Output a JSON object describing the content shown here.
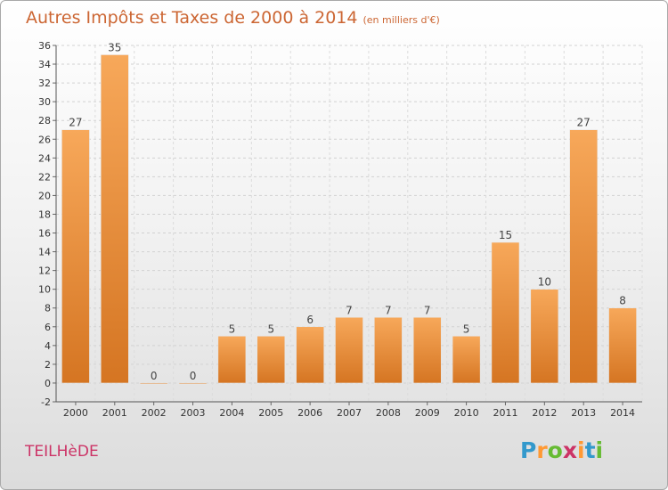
{
  "title": "Autres Impôts et Taxes de 2000 à 2014",
  "subtitle": "(en milliers d'€)",
  "commune": "TEILHèDE",
  "logo": {
    "letters": [
      "P",
      "r",
      "o",
      "x",
      "i",
      "t",
      "i"
    ],
    "colors": [
      "#3399cc",
      "#ff9933",
      "#66bb33",
      "#cc3366",
      "#ff9933",
      "#3399cc",
      "#66bb33"
    ]
  },
  "colors": {
    "title": "#cc6633",
    "commune": "#cc3366",
    "bar_light": "#f7a85a",
    "bar_dark": "#d57522"
  },
  "chart_data": {
    "type": "bar",
    "categories": [
      "2000",
      "2001",
      "2002",
      "2003",
      "2004",
      "2005",
      "2006",
      "2007",
      "2008",
      "2009",
      "2010",
      "2011",
      "2012",
      "2013",
      "2014"
    ],
    "values": [
      27,
      35,
      0,
      0,
      5,
      5,
      6,
      7,
      7,
      7,
      5,
      15,
      10,
      27,
      8
    ],
    "ylim": [
      -2,
      36
    ],
    "yticks": [
      -2,
      0,
      2,
      4,
      6,
      8,
      10,
      12,
      14,
      16,
      18,
      20,
      22,
      24,
      26,
      28,
      30,
      32,
      34,
      36
    ],
    "grid": true,
    "legend": "none"
  }
}
